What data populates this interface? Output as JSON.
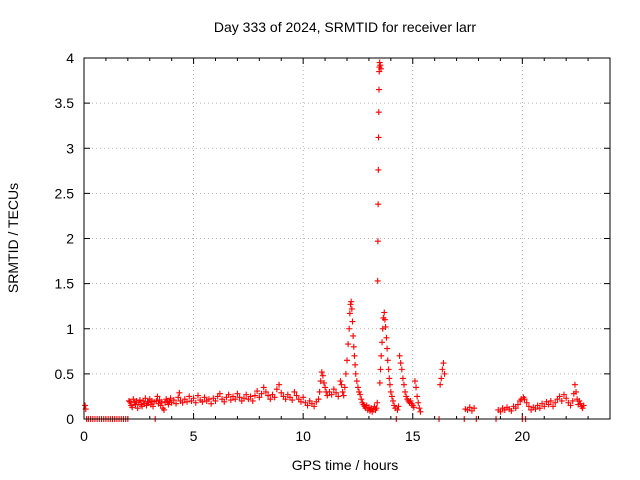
{
  "chart_data": {
    "type": "scatter",
    "title": "Day 333 of 2024, SRMTID for receiver larr",
    "xlabel": "GPS time / hours",
    "ylabel": "SRMTID / TECUs",
    "xlim": [
      0,
      24
    ],
    "ylim": [
      0,
      4
    ],
    "xticks": [
      0,
      5,
      10,
      15,
      20
    ],
    "xtick_labels": [
      "0",
      "5",
      "10",
      "15",
      "20"
    ],
    "yticks": [
      0,
      0.5,
      1,
      1.5,
      2,
      2.5,
      3,
      3.5,
      4
    ],
    "ytick_labels": [
      "0",
      "0.5",
      "1",
      "1.5",
      "2",
      "2.5",
      "3",
      "3.5",
      "4"
    ],
    "grid": true,
    "marker": "plus",
    "color": "#ff0000",
    "series": [
      {
        "name": "SRMTID",
        "points": [
          [
            0.05,
            0.15
          ],
          [
            0.08,
            0.11
          ],
          [
            0.12,
            0.0
          ],
          [
            0.2,
            0.0
          ],
          [
            0.3,
            0.0
          ],
          [
            0.4,
            0.0
          ],
          [
            0.5,
            0.0
          ],
          [
            0.6,
            0.0
          ],
          [
            0.7,
            0.0
          ],
          [
            0.8,
            0.0
          ],
          [
            0.9,
            0.0
          ],
          [
            1.0,
            0.0
          ],
          [
            1.1,
            0.0
          ],
          [
            1.2,
            0.0
          ],
          [
            1.3,
            0.0
          ],
          [
            1.4,
            0.0
          ],
          [
            1.5,
            0.0
          ],
          [
            1.6,
            0.0
          ],
          [
            1.7,
            0.0
          ],
          [
            1.8,
            0.0
          ],
          [
            1.9,
            0.0
          ],
          [
            2.0,
            0.0
          ],
          [
            2.05,
            0.2
          ],
          [
            2.1,
            0.19
          ],
          [
            2.15,
            0.15
          ],
          [
            2.2,
            0.13
          ],
          [
            2.25,
            0.22
          ],
          [
            2.3,
            0.18
          ],
          [
            2.35,
            0.16
          ],
          [
            2.4,
            0.2
          ],
          [
            2.45,
            0.12
          ],
          [
            2.5,
            0.18
          ],
          [
            2.55,
            0.21
          ],
          [
            2.6,
            0.16
          ],
          [
            2.65,
            0.14
          ],
          [
            2.7,
            0.2
          ],
          [
            2.75,
            0.17
          ],
          [
            2.8,
            0.23
          ],
          [
            2.85,
            0.15
          ],
          [
            2.9,
            0.19
          ],
          [
            2.95,
            0.18
          ],
          [
            3.0,
            0.22
          ],
          [
            3.05,
            0.16
          ],
          [
            3.1,
            0.2
          ],
          [
            3.15,
            0.14
          ],
          [
            3.2,
            0.19
          ],
          [
            3.25,
            0.0
          ],
          [
            3.3,
            0.2
          ],
          [
            3.35,
            0.25
          ],
          [
            3.4,
            0.17
          ],
          [
            3.45,
            0.21
          ],
          [
            3.5,
            0.15
          ],
          [
            3.55,
            0.19
          ],
          [
            3.6,
            0.12
          ],
          [
            3.65,
            0.1
          ],
          [
            3.7,
            0.18
          ],
          [
            3.75,
            0.22
          ],
          [
            3.8,
            0.2
          ],
          [
            3.85,
            0.16
          ],
          [
            3.9,
            0.19
          ],
          [
            3.95,
            0.23
          ],
          [
            4.0,
            0.18
          ],
          [
            4.1,
            0.21
          ],
          [
            4.2,
            0.17
          ],
          [
            4.3,
            0.24
          ],
          [
            4.35,
            0.29
          ],
          [
            4.4,
            0.2
          ],
          [
            4.5,
            0.18
          ],
          [
            4.6,
            0.22
          ],
          [
            4.7,
            0.19
          ],
          [
            4.8,
            0.25
          ],
          [
            4.9,
            0.2
          ],
          [
            5.0,
            0.23
          ],
          [
            5.1,
            0.18
          ],
          [
            5.2,
            0.26
          ],
          [
            5.3,
            0.21
          ],
          [
            5.4,
            0.19
          ],
          [
            5.5,
            0.24
          ],
          [
            5.6,
            0.2
          ],
          [
            5.7,
            0.22
          ],
          [
            5.8,
            0.17
          ],
          [
            5.9,
            0.23
          ],
          [
            6.0,
            0.2
          ],
          [
            6.1,
            0.25
          ],
          [
            6.2,
            0.28
          ],
          [
            6.3,
            0.22
          ],
          [
            6.4,
            0.19
          ],
          [
            6.5,
            0.24
          ],
          [
            6.6,
            0.27
          ],
          [
            6.7,
            0.21
          ],
          [
            6.8,
            0.25
          ],
          [
            6.9,
            0.22
          ],
          [
            7.0,
            0.28
          ],
          [
            7.1,
            0.24
          ],
          [
            7.2,
            0.2
          ],
          [
            7.3,
            0.23
          ],
          [
            7.4,
            0.27
          ],
          [
            7.5,
            0.22
          ],
          [
            7.6,
            0.25
          ],
          [
            7.7,
            0.2
          ],
          [
            7.8,
            0.26
          ],
          [
            7.9,
            0.31
          ],
          [
            8.0,
            0.24
          ],
          [
            8.1,
            0.28
          ],
          [
            8.2,
            0.35
          ],
          [
            8.3,
            0.3
          ],
          [
            8.4,
            0.26
          ],
          [
            8.5,
            0.22
          ],
          [
            8.6,
            0.27
          ],
          [
            8.7,
            0.24
          ],
          [
            8.8,
            0.33
          ],
          [
            8.9,
            0.38
          ],
          [
            9.0,
            0.29
          ],
          [
            9.1,
            0.25
          ],
          [
            9.2,
            0.22
          ],
          [
            9.3,
            0.27
          ],
          [
            9.4,
            0.24
          ],
          [
            9.5,
            0.21
          ],
          [
            9.6,
            0.3
          ],
          [
            9.7,
            0.26
          ],
          [
            9.8,
            0.22
          ],
          [
            9.9,
            0.19
          ],
          [
            10.0,
            0.24
          ],
          [
            10.1,
            0.18
          ],
          [
            10.2,
            0.15
          ],
          [
            10.3,
            0.2
          ],
          [
            10.4,
            0.17
          ],
          [
            10.5,
            0.14
          ],
          [
            10.6,
            0.19
          ],
          [
            10.7,
            0.22
          ],
          [
            10.75,
            0.3
          ],
          [
            10.8,
            0.42
          ],
          [
            10.85,
            0.52
          ],
          [
            10.9,
            0.48
          ],
          [
            10.95,
            0.4
          ],
          [
            11.0,
            0.35
          ],
          [
            11.05,
            0.3
          ],
          [
            11.1,
            0.26
          ],
          [
            11.2,
            0.3
          ],
          [
            11.3,
            0.27
          ],
          [
            11.4,
            0.33
          ],
          [
            11.5,
            0.29
          ],
          [
            11.6,
            0.25
          ],
          [
            11.7,
            0.42
          ],
          [
            11.75,
            0.38
          ],
          [
            11.8,
            0.3
          ],
          [
            11.85,
            0.26
          ],
          [
            11.9,
            0.35
          ],
          [
            11.95,
            0.5
          ],
          [
            12.0,
            0.65
          ],
          [
            12.05,
            0.83
          ],
          [
            12.1,
            1.0
          ],
          [
            12.13,
            1.17
          ],
          [
            12.16,
            1.27
          ],
          [
            12.19,
            1.3
          ],
          [
            12.22,
            1.22
          ],
          [
            12.25,
            1.08
          ],
          [
            12.28,
            0.92
          ],
          [
            12.31,
            0.8
          ],
          [
            12.34,
            0.7
          ],
          [
            12.37,
            0.6
          ],
          [
            12.4,
            0.5
          ],
          [
            12.45,
            0.42
          ],
          [
            12.5,
            0.35
          ],
          [
            12.55,
            0.3
          ],
          [
            12.6,
            0.27
          ],
          [
            12.65,
            0.22
          ],
          [
            12.7,
            0.18
          ],
          [
            12.75,
            0.16
          ],
          [
            12.8,
            0.14
          ],
          [
            12.85,
            0.12
          ],
          [
            12.9,
            0.15
          ],
          [
            12.95,
            0.1
          ],
          [
            13.0,
            0.13
          ],
          [
            13.05,
            0.09
          ],
          [
            13.1,
            0.12
          ],
          [
            13.15,
            0.08
          ],
          [
            13.2,
            0.11
          ],
          [
            13.25,
            0.14
          ],
          [
            13.3,
            0.1
          ],
          [
            13.35,
            0.12
          ],
          [
            13.38,
            0.18
          ],
          [
            13.4,
            1.53
          ],
          [
            13.41,
            1.97
          ],
          [
            13.42,
            2.38
          ],
          [
            13.43,
            2.76
          ],
          [
            13.44,
            3.12
          ],
          [
            13.45,
            3.4
          ],
          [
            13.46,
            3.65
          ],
          [
            13.47,
            3.85
          ],
          [
            13.48,
            3.9
          ],
          [
            13.49,
            3.95
          ],
          [
            13.52,
            3.92
          ],
          [
            13.55,
            3.88
          ],
          [
            13.5,
            0.4
          ],
          [
            13.53,
            0.55
          ],
          [
            13.56,
            0.7
          ],
          [
            13.6,
            0.85
          ],
          [
            13.63,
            1.0
          ],
          [
            13.66,
            1.12
          ],
          [
            13.7,
            1.18
          ],
          [
            13.73,
            1.1
          ],
          [
            13.76,
            1.02
          ],
          [
            13.8,
            0.9
          ],
          [
            13.83,
            0.78
          ],
          [
            13.86,
            0.65
          ],
          [
            13.9,
            0.55
          ],
          [
            13.93,
            0.45
          ],
          [
            13.96,
            0.38
          ],
          [
            14.0,
            0.3
          ],
          [
            14.05,
            0.25
          ],
          [
            14.1,
            0.2
          ],
          [
            14.15,
            0.15
          ],
          [
            14.2,
            0.12
          ],
          [
            14.25,
            0.0
          ],
          [
            14.3,
            0.1
          ],
          [
            14.35,
            0.14
          ],
          [
            14.4,
            0.7
          ],
          [
            14.45,
            0.62
          ],
          [
            14.5,
            0.55
          ],
          [
            14.55,
            0.45
          ],
          [
            14.6,
            0.38
          ],
          [
            14.65,
            0.3
          ],
          [
            14.7,
            0.25
          ],
          [
            14.75,
            0.22
          ],
          [
            14.8,
            0.2
          ],
          [
            14.85,
            0.18
          ],
          [
            14.9,
            0.2
          ],
          [
            14.95,
            0.17
          ],
          [
            15.0,
            0.15
          ],
          [
            15.05,
            0.13
          ],
          [
            15.1,
            0.42
          ],
          [
            15.15,
            0.35
          ],
          [
            15.2,
            0.25
          ],
          [
            15.25,
            0.18
          ],
          [
            15.3,
            0.12
          ],
          [
            15.35,
            0.08
          ],
          [
            16.2,
            0.0
          ],
          [
            16.25,
            0.38
          ],
          [
            16.3,
            0.45
          ],
          [
            16.35,
            0.55
          ],
          [
            16.4,
            0.62
          ],
          [
            16.45,
            0.5
          ],
          [
            17.35,
            0.0
          ],
          [
            17.4,
            0.11
          ],
          [
            17.5,
            0.1
          ],
          [
            17.6,
            0.13
          ],
          [
            17.7,
            0.09
          ],
          [
            17.8,
            0.12
          ],
          [
            17.9,
            0.0
          ],
          [
            18.8,
            0.0
          ],
          [
            18.9,
            0.1
          ],
          [
            19.0,
            0.08
          ],
          [
            19.1,
            0.12
          ],
          [
            19.2,
            0.1
          ],
          [
            19.3,
            0.13
          ],
          [
            19.4,
            0.11
          ],
          [
            19.5,
            0.09
          ],
          [
            19.6,
            0.14
          ],
          [
            19.7,
            0.12
          ],
          [
            19.8,
            0.16
          ],
          [
            19.9,
            0.2
          ],
          [
            19.95,
            0.22
          ],
          [
            20.0,
            0.0
          ],
          [
            20.05,
            0.24
          ],
          [
            20.1,
            0.22
          ],
          [
            20.15,
            0.0
          ],
          [
            20.2,
            0.18
          ],
          [
            20.3,
            0.14
          ],
          [
            20.4,
            0.1
          ],
          [
            20.5,
            0.13
          ],
          [
            20.6,
            0.11
          ],
          [
            20.7,
            0.15
          ],
          [
            20.8,
            0.12
          ],
          [
            20.9,
            0.17
          ],
          [
            21.0,
            0.14
          ],
          [
            21.1,
            0.19
          ],
          [
            21.2,
            0.16
          ],
          [
            21.3,
            0.2
          ],
          [
            21.4,
            0.14
          ],
          [
            21.5,
            0.18
          ],
          [
            21.6,
            0.22
          ],
          [
            21.7,
            0.25
          ],
          [
            21.8,
            0.2
          ],
          [
            21.9,
            0.27
          ],
          [
            22.0,
            0.23
          ],
          [
            22.1,
            0.18
          ],
          [
            22.2,
            0.15
          ],
          [
            22.3,
            0.2
          ],
          [
            22.35,
            0.28
          ],
          [
            22.4,
            0.38
          ],
          [
            22.45,
            0.3
          ],
          [
            22.5,
            0.22
          ],
          [
            22.55,
            0.16
          ],
          [
            22.6,
            0.2
          ],
          [
            22.65,
            0.17
          ],
          [
            22.7,
            0.14
          ],
          [
            22.75,
            0.12
          ],
          [
            22.8,
            0.15
          ]
        ]
      }
    ]
  }
}
